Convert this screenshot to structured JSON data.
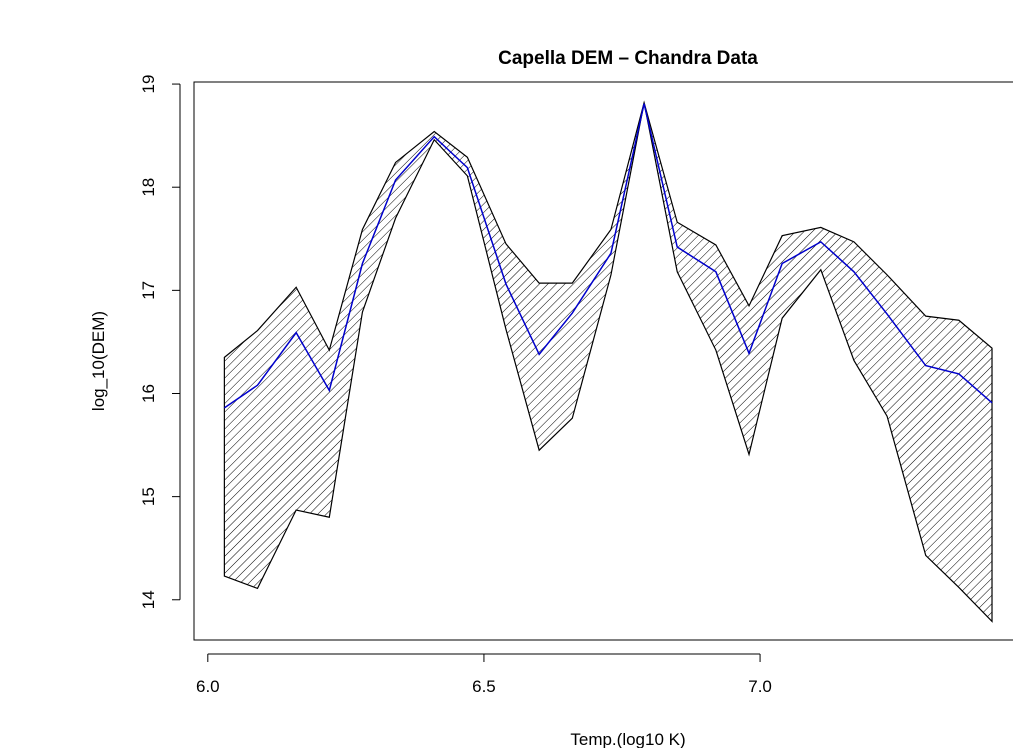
{
  "chart_data": {
    "type": "band-line",
    "title": "Capella DEM – Chandra Data",
    "x_label": "Temp.(log10 K)",
    "y_label": "log_10(DEM)",
    "x": [
      6.03,
      6.09,
      6.16,
      6.22,
      6.28,
      6.34,
      6.41,
      6.47,
      6.54,
      6.6,
      6.66,
      6.73,
      6.79,
      6.85,
      6.92,
      6.98,
      7.04,
      7.11,
      7.17,
      7.23,
      7.3,
      7.36,
      7.42
    ],
    "values": [
      15.86,
      16.08,
      16.59,
      16.03,
      17.26,
      18.07,
      18.49,
      18.19,
      17.06,
      16.38,
      16.78,
      17.36,
      18.81,
      17.42,
      17.18,
      16.39,
      17.26,
      17.47,
      17.18,
      16.77,
      16.27,
      16.19,
      15.91
    ],
    "upper": [
      16.35,
      16.61,
      17.03,
      16.42,
      17.59,
      18.24,
      18.54,
      18.29,
      17.45,
      17.07,
      17.07,
      17.59,
      18.82,
      17.66,
      17.44,
      16.85,
      17.53,
      17.61,
      17.47,
      17.15,
      16.75,
      16.71,
      16.44
    ],
    "lower": [
      14.23,
      14.11,
      14.87,
      14.8,
      16.79,
      17.7,
      18.46,
      18.11,
      16.62,
      15.45,
      15.76,
      17.15,
      18.82,
      17.18,
      16.42,
      15.41,
      16.73,
      17.2,
      16.32,
      15.78,
      14.43,
      14.12,
      13.79
    ],
    "color": "#0000cc",
    "band_color": "#000000",
    "xlim": [
      5.975,
      7.525
    ],
    "ylim": [
      13.61,
      19.02
    ],
    "xticks": [
      {
        "value": 6,
        "label": "6.0"
      },
      6.5,
      {
        "value": 7,
        "label": "7.0"
      }
    ],
    "yticks": [
      14,
      15,
      16,
      17,
      18,
      19
    ]
  }
}
